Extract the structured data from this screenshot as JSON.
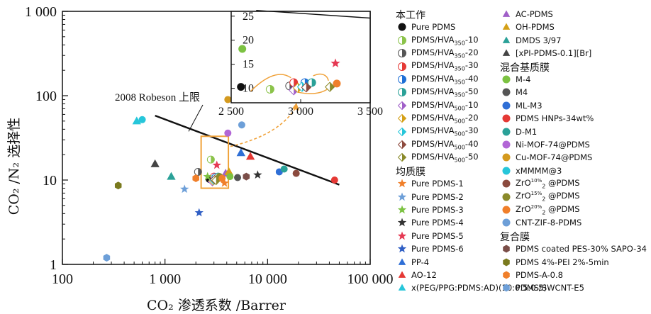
{
  "chart_data": {
    "type": "scatter",
    "xlabel": "CO₂ 渗透系数 /Barrer",
    "ylabel": "CO₂ /N₂ 选择性",
    "xscale": "log",
    "yscale": "log",
    "xlim": [
      100,
      100000
    ],
    "ylim": [
      1,
      1000
    ],
    "xticks": [
      "100",
      "1 000",
      "10 000",
      "100 000"
    ],
    "yticks": [
      "1",
      "10",
      "100",
      "1 000"
    ],
    "upper_bound": {
      "label": "2008 Robeson 上限",
      "points": [
        [
          800,
          58
        ],
        [
          50000,
          8.8
        ]
      ]
    },
    "inset": {
      "xlim": [
        2500,
        3500
      ],
      "ylim": [
        7,
        26
      ],
      "xticks": [
        "2 500",
        "3 000",
        "3 500"
      ],
      "yticks": [
        "10",
        "15",
        "20",
        "25"
      ]
    },
    "groups": [
      {
        "name": "本工作",
        "series": [
          {
            "name": "Pure PDMS",
            "color": "#111111",
            "marker": "circle",
            "style": "full",
            "points": [
              [
                2700,
                10.2
              ]
            ],
            "inset_points": [
              [
                2570,
                10.3
              ]
            ]
          },
          {
            "name": "PDMS/HVA350-10",
            "color": "#8bc34a",
            "marker": "circle",
            "style": "half",
            "points": [
              [
                2800,
                17.5
              ]
            ],
            "inset_points": [
              [
                2780,
                9.8
              ]
            ]
          },
          {
            "name": "PDMS/HVA350-20",
            "color": "#555555",
            "marker": "circle",
            "style": "half",
            "points": [
              [
                2100,
                12.5
              ]
            ],
            "inset_points": [
              [
                2920,
                10.5
              ]
            ]
          },
          {
            "name": "PDMS/HVA350-30",
            "color": "#e53935",
            "marker": "circle",
            "style": "half",
            "points": [
              [
                3000,
                11
              ]
            ],
            "inset_points": [
              [
                2950,
                11.2
              ]
            ]
          },
          {
            "name": "PDMS/HVA350-40",
            "color": "#1e6fd6",
            "marker": "circle",
            "style": "half",
            "points": [
              [
                3100,
                10.8
              ]
            ],
            "inset_points": [
              [
                3030,
                11.2
              ]
            ]
          },
          {
            "name": "PDMS/HVA350-50",
            "color": "#2aa198",
            "marker": "circle",
            "style": "half",
            "points": [
              [
                3300,
                11
              ]
            ],
            "inset_points": [
              [
                3080,
                11.2
              ]
            ]
          },
          {
            "name": "PDMS/HVA500-10",
            "color": "#a05fc8",
            "marker": "diamond",
            "style": "half",
            "points": [
              [
                2900,
                9.6
              ]
            ],
            "inset_points": [
              [
                2950,
                9.6
              ]
            ]
          },
          {
            "name": "PDMS/HVA500-20",
            "color": "#d4a017",
            "marker": "diamond",
            "style": "half",
            "points": [
              [
                2950,
                9.8
              ]
            ],
            "inset_points": [
              [
                2980,
                10.1
              ]
            ]
          },
          {
            "name": "PDMS/HVA500-30",
            "color": "#26c6da",
            "marker": "diamond",
            "style": "half",
            "points": [
              [
                3000,
                10
              ]
            ],
            "inset_points": [
              [
                3010,
                10.3
              ]
            ]
          },
          {
            "name": "PDMS/HVA500-40",
            "color": "#8d4a3e",
            "marker": "diamond",
            "style": "half",
            "points": [
              [
                3050,
                10.1
              ]
            ],
            "inset_points": [
              [
                3040,
                10.2
              ]
            ]
          },
          {
            "name": "PDMS/HVA500-50",
            "color": "#8a8a2a",
            "marker": "diamond",
            "style": "half",
            "points": [
              [
                3150,
                9.9
              ]
            ],
            "inset_points": [
              [
                3210,
                10.3
              ]
            ]
          }
        ]
      },
      {
        "name": "均质膜",
        "series": [
          {
            "name": "Pure PDMS-1",
            "color": "#f07f2a",
            "marker": "star",
            "points": [
              [
                3800,
                9.2
              ]
            ]
          },
          {
            "name": "Pure PDMS-2",
            "color": "#6d9fd8",
            "marker": "star",
            "points": [
              [
                1550,
                7.8
              ]
            ]
          },
          {
            "name": "Pure PDMS-3",
            "color": "#7cc242",
            "marker": "star",
            "points": [
              [
                2600,
                11
              ]
            ]
          },
          {
            "name": "Pure PDMS-4",
            "color": "#333333",
            "marker": "star",
            "points": [
              [
                8000,
                11.5
              ]
            ]
          },
          {
            "name": "Pure PDMS-5",
            "color": "#e53953",
            "marker": "star",
            "points": [
              [
                3200,
                15
              ]
            ]
          },
          {
            "name": "Pure PDMS-6",
            "color": "#2f5ec4",
            "marker": "star",
            "points": [
              [
                2150,
                4.1
              ]
            ]
          },
          {
            "name": "PP-4",
            "color": "#2f6fd6",
            "marker": "triangle",
            "points": [
              [
                5500,
                21
              ]
            ]
          },
          {
            "name": "AO-12",
            "color": "#e53935",
            "marker": "triangle",
            "points": [
              [
                6800,
                19
              ]
            ]
          },
          {
            "name": "x(PEG/PPG:PDMS:AD)(10:0.5:0.5)",
            "color": "#26c6da",
            "marker": "triangle",
            "points": [
              [
                530,
                50
              ]
            ]
          },
          {
            "name": "AC-PDMS",
            "color": "#a05fc8",
            "marker": "triangle",
            "points": [
              [
                3900,
                12
              ]
            ]
          },
          {
            "name": "OH-PDMS",
            "color": "#d4a017",
            "marker": "triangle",
            "points": [
              [
                4200,
                12.5
              ]
            ]
          },
          {
            "name": "DMDS 3/97",
            "color": "#2aa198",
            "marker": "triangle",
            "points": [
              [
                1150,
                11
              ]
            ]
          },
          {
            "name": "[xPI-PDMS-0.1][Br]",
            "color": "#444444",
            "marker": "triangle",
            "points": [
              [
                800,
                15.5
              ]
            ]
          }
        ]
      },
      {
        "name": "混合基质膜",
        "series": [
          {
            "name": "M-4",
            "color": "#7cc242",
            "marker": "circle",
            "points": [
              [
                4300,
                11
              ]
            ]
          },
          {
            "name": "M4",
            "color": "#555555",
            "marker": "circle",
            "points": [
              [
                5100,
                10.7
              ]
            ]
          },
          {
            "name": "ML-M3",
            "color": "#2f6fd6",
            "marker": "circle",
            "points": [
              [
                13000,
                12.5
              ]
            ]
          },
          {
            "name": "PDMS HNPs-34wt%",
            "color": "#e53935",
            "marker": "circle",
            "points": [
              [
                45000,
                10
              ]
            ]
          },
          {
            "name": "D-M1",
            "color": "#2aa198",
            "marker": "circle",
            "points": [
              [
                14500,
                13.5
              ]
            ]
          },
          {
            "name": "Ni-MOF-74@PDMS",
            "color": "#b266d6",
            "marker": "circle",
            "points": [
              [
                4100,
                36
              ]
            ]
          },
          {
            "name": "Cu-MOF-74@PDMS",
            "color": "#d49a1f",
            "marker": "circle",
            "points": [
              [
                4100,
                90
              ]
            ]
          },
          {
            "name": "xMMMM@3",
            "color": "#26c6da",
            "marker": "circle",
            "points": [
              [
                600,
                52
              ]
            ]
          },
          {
            "name": "ZrO2 10%@PDMS",
            "color": "#8b4a3e",
            "marker": "circle",
            "points": [
              [
                19000,
                12
              ]
            ]
          },
          {
            "name": "ZrO2 15%@PDMS",
            "color": "#8a8a2a",
            "marker": "circle",
            "points": [
              [
                3400,
                11
              ]
            ]
          },
          {
            "name": "ZrO2 20%@PDMS",
            "color": "#f07f2a",
            "marker": "circle",
            "points": [
              [
                3600,
                10.5
              ]
            ]
          },
          {
            "name": "CNT-ZIF-8-PDMS",
            "color": "#6d9fd8",
            "marker": "circle",
            "points": [
              [
                5600,
                45
              ]
            ]
          }
        ]
      },
      {
        "name": "复合膜",
        "series": [
          {
            "name": "PDMS coated PES-30% SAPO-34",
            "color": "#7a4e48",
            "marker": "hexagon",
            "points": [
              [
                6200,
                11
              ]
            ]
          },
          {
            "name": "PDMS 4%-PEI 2%-5min",
            "color": "#7a7a1e",
            "marker": "hexagon",
            "points": [
              [
                350,
                8.6
              ]
            ]
          },
          {
            "name": "PDMS-A-0.8",
            "color": "#f07f2a",
            "marker": "hexagon",
            "points": [
              [
                2000,
                10.5
              ]
            ]
          },
          {
            "name": "PDMS/SWCNT-E5",
            "color": "#6d9fd8",
            "marker": "hexagon",
            "points": [
              [
                270,
                1.2
              ]
            ]
          }
        ]
      }
    ]
  },
  "legend": {
    "col1": [
      {
        "type": "head",
        "text": "本工作"
      },
      {
        "type": "item",
        "label": "Pure PDMS",
        "ref": "0.0"
      },
      {
        "type": "item",
        "label": "PDMS/HVA",
        "sub": "350",
        "suffix": "-10",
        "ref": "0.1"
      },
      {
        "type": "item",
        "label": "PDMS/HVA",
        "sub": "350",
        "suffix": "-20",
        "ref": "0.2"
      },
      {
        "type": "item",
        "label": "PDMS/HVA",
        "sub": "350",
        "suffix": "-30",
        "ref": "0.3"
      },
      {
        "type": "item",
        "label": "PDMS/HVA",
        "sub": "350",
        "suffix": "-40",
        "ref": "0.4"
      },
      {
        "type": "item",
        "label": "PDMS/HVA",
        "sub": "350",
        "suffix": "-50",
        "ref": "0.5"
      },
      {
        "type": "item",
        "label": "PDMS/HVA",
        "sub": "500",
        "suffix": "-10",
        "ref": "0.6"
      },
      {
        "type": "item",
        "label": "PDMS/HVA",
        "sub": "500",
        "suffix": "-20",
        "ref": "0.7"
      },
      {
        "type": "item",
        "label": "PDMS/HVA",
        "sub": "500",
        "suffix": "-30",
        "ref": "0.8"
      },
      {
        "type": "item",
        "label": "PDMS/HVA",
        "sub": "500",
        "suffix": "-40",
        "ref": "0.9"
      },
      {
        "type": "item",
        "label": "PDMS/HVA",
        "sub": "500",
        "suffix": "-50",
        "ref": "0.10"
      },
      {
        "type": "head",
        "text": "均质膜"
      },
      {
        "type": "item",
        "label": "Pure PDMS-1",
        "ref": "1.0"
      },
      {
        "type": "item",
        "label": "Pure PDMS-2",
        "ref": "1.1"
      },
      {
        "type": "item",
        "label": "Pure PDMS-3",
        "ref": "1.2"
      },
      {
        "type": "item",
        "label": "Pure PDMS-4",
        "ref": "1.3"
      },
      {
        "type": "item",
        "label": "Pure PDMS-5",
        "ref": "1.4"
      },
      {
        "type": "item",
        "label": "Pure PDMS-6",
        "ref": "1.5"
      },
      {
        "type": "item",
        "label": "PP-4",
        "ref": "1.6"
      },
      {
        "type": "item",
        "label": "AO-12",
        "ref": "1.7"
      },
      {
        "type": "item",
        "label": "x(PEG/PPG:PDMS:AD)(10:0.5:0.5)",
        "ref": "1.8"
      }
    ],
    "col2": [
      {
        "type": "item",
        "label": "AC-PDMS",
        "ref": "1.9"
      },
      {
        "type": "item",
        "label": "OH-PDMS",
        "ref": "1.10"
      },
      {
        "type": "item",
        "label": "DMDS 3/97",
        "ref": "1.11"
      },
      {
        "type": "item",
        "label": "[xPI-PDMS-0.1][Br]",
        "ref": "1.12"
      },
      {
        "type": "head",
        "text": "混合基质膜"
      },
      {
        "type": "item",
        "label": "M-4",
        "ref": "2.0"
      },
      {
        "type": "item",
        "label": "M4",
        "ref": "2.1"
      },
      {
        "type": "item",
        "label": "ML-M3",
        "ref": "2.2"
      },
      {
        "type": "item",
        "label": "PDMS HNPs-34wt%",
        "ref": "2.3"
      },
      {
        "type": "item",
        "label": "D-M1",
        "ref": "2.4"
      },
      {
        "type": "item",
        "label": "Ni-MOF-74@PDMS",
        "ref": "2.5"
      },
      {
        "type": "item",
        "label": "Cu-MOF-74@PDMS",
        "ref": "2.6"
      },
      {
        "type": "item",
        "label": "xMMMM@3",
        "ref": "2.7"
      },
      {
        "type": "item",
        "label": "ZrO",
        "sub": "2",
        "sup": "10%",
        "suffix": " @PDMS",
        "ref": "2.8"
      },
      {
        "type": "item",
        "label": "ZrO",
        "sub": "2",
        "sup": "15%",
        "suffix": " @PDMS",
        "ref": "2.9"
      },
      {
        "type": "item",
        "label": "ZrO",
        "sub": "2",
        "sup": "20%",
        "suffix": " @PDMS",
        "ref": "2.10"
      },
      {
        "type": "item",
        "label": "CNT-ZIF-8-PDMS",
        "ref": "2.11"
      },
      {
        "type": "head",
        "text": "复合膜"
      },
      {
        "type": "item",
        "label": "PDMS coated PES-30% SAPO-34",
        "ref": "3.0"
      },
      {
        "type": "item",
        "label": "PDMS 4%-PEI 2%-5min",
        "ref": "3.1"
      },
      {
        "type": "item",
        "label": "PDMS-A-0.8",
        "ref": "3.2"
      },
      {
        "type": "item",
        "label": "PDMS/SWCNT-E5",
        "ref": "3.3"
      }
    ]
  }
}
